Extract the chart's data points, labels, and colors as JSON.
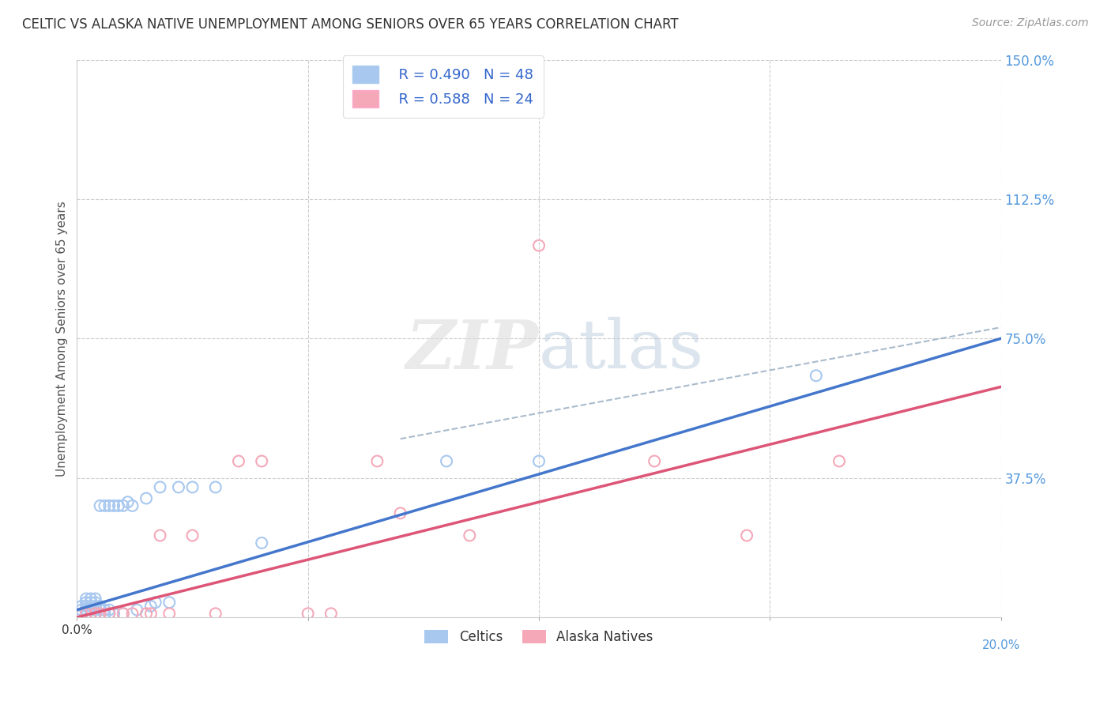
{
  "title": "CELTIC VS ALASKA NATIVE UNEMPLOYMENT AMONG SENIORS OVER 65 YEARS CORRELATION CHART",
  "source": "Source: ZipAtlas.com",
  "ylabel": "Unemployment Among Seniors over 65 years",
  "celtics_R": "0.490",
  "celtics_N": "48",
  "alaska_R": "0.588",
  "alaska_N": "24",
  "celtics_color": "#A8C8F0",
  "alaska_color": "#F5A8B8",
  "celtics_line_color": "#4477CC",
  "alaska_line_color": "#DD5577",
  "celtics_line_color_dashed": "#8899CC",
  "background_color": "#FFFFFF",
  "grid_color": "#CCCCCC",
  "right_label_color": "#5599DD",
  "xlim": [
    0.0,
    0.2
  ],
  "ylim": [
    0.0,
    1.5
  ],
  "x_ticks": [
    0.0,
    0.05,
    0.1,
    0.15,
    0.2
  ],
  "y_ticks_right": [
    0.375,
    0.75,
    1.125,
    1.5
  ],
  "y_tick_labels_right": [
    "37.5%",
    "75.0%",
    "112.5%",
    "150.0%"
  ],
  "celtics_x": [
    0.001,
    0.001,
    0.001,
    0.002,
    0.002,
    0.002,
    0.002,
    0.002,
    0.003,
    0.003,
    0.003,
    0.003,
    0.003,
    0.004,
    0.004,
    0.004,
    0.004,
    0.004,
    0.005,
    0.005,
    0.005,
    0.005,
    0.006,
    0.006,
    0.006,
    0.007,
    0.007,
    0.007,
    0.008,
    0.008,
    0.009,
    0.01,
    0.01,
    0.011,
    0.012,
    0.013,
    0.015,
    0.016,
    0.017,
    0.018,
    0.02,
    0.022,
    0.025,
    0.03,
    0.04,
    0.08,
    0.1,
    0.16
  ],
  "celtics_y": [
    0.01,
    0.02,
    0.03,
    0.01,
    0.02,
    0.03,
    0.04,
    0.05,
    0.01,
    0.02,
    0.03,
    0.04,
    0.05,
    0.01,
    0.02,
    0.03,
    0.04,
    0.05,
    0.01,
    0.02,
    0.03,
    0.3,
    0.01,
    0.02,
    0.3,
    0.01,
    0.02,
    0.3,
    0.01,
    0.3,
    0.3,
    0.01,
    0.3,
    0.31,
    0.3,
    0.02,
    0.32,
    0.03,
    0.04,
    0.35,
    0.04,
    0.35,
    0.35,
    0.35,
    0.2,
    0.42,
    0.42,
    0.65
  ],
  "alaska_x": [
    0.001,
    0.002,
    0.004,
    0.005,
    0.007,
    0.01,
    0.012,
    0.015,
    0.016,
    0.018,
    0.02,
    0.025,
    0.03,
    0.035,
    0.04,
    0.05,
    0.055,
    0.065,
    0.07,
    0.085,
    0.1,
    0.125,
    0.145,
    0.165
  ],
  "alaska_y": [
    0.01,
    0.01,
    0.01,
    0.01,
    0.01,
    0.01,
    0.01,
    0.01,
    0.01,
    0.22,
    0.01,
    0.22,
    0.01,
    0.42,
    0.42,
    0.01,
    0.01,
    0.42,
    0.28,
    0.22,
    1.0,
    0.42,
    0.22,
    0.42
  ],
  "celtics_line_x": [
    0.0,
    0.2
  ],
  "celtics_line_y": [
    0.02,
    0.75
  ],
  "alaska_line_x": [
    0.0,
    0.2
  ],
  "alaska_line_y": [
    0.0,
    0.62
  ],
  "dashed_line_x": [
    0.07,
    0.2
  ],
  "dashed_line_y": [
    0.48,
    0.78
  ]
}
